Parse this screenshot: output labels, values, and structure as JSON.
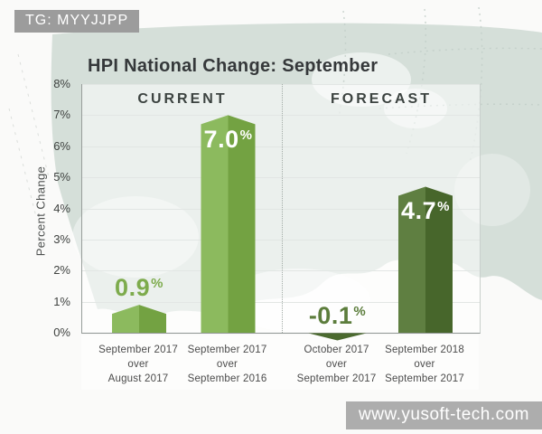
{
  "badge": {
    "text": "TG: MYYJJPP"
  },
  "watermark": {
    "text": "www.yusoft-tech.com"
  },
  "chart_data": {
    "type": "bar",
    "title": "HPI National Change: September",
    "ylabel": "Percent Change",
    "ylim": [
      0,
      8
    ],
    "grid": true,
    "yticks": [
      {
        "value": 8,
        "label": "8%"
      },
      {
        "value": 7,
        "label": "7%"
      },
      {
        "value": 6,
        "label": "6%"
      },
      {
        "value": 5,
        "label": "5%"
      },
      {
        "value": 4,
        "label": "4%"
      },
      {
        "value": 3,
        "label": "3%"
      },
      {
        "value": 2,
        "label": "2%"
      },
      {
        "value": 1,
        "label": "1%"
      },
      {
        "value": 0,
        "label": "0%"
      }
    ],
    "sections": [
      {
        "label": "CURRENT"
      },
      {
        "label": "FORECAST"
      }
    ],
    "bars": [
      {
        "section": "CURRENT",
        "value": 0.9,
        "display": "0.9",
        "suffix": "%",
        "label_position": "above",
        "category_lines": [
          "September 2017",
          "over",
          "August 2017"
        ],
        "color_left": "#8cba5e",
        "color_right": "#73a242",
        "label_color": "#7dab4c"
      },
      {
        "section": "CURRENT",
        "value": 7.0,
        "display": "7.0",
        "suffix": "%",
        "label_position": "inside",
        "category_lines": [
          "September 2017",
          "over",
          "September 2016"
        ],
        "color_left": "#8cba5e",
        "color_right": "#73a242",
        "label_color": "#ffffff"
      },
      {
        "section": "FORECAST",
        "value": -0.1,
        "display": "-0.1",
        "suffix": "%",
        "label_position": "above",
        "category_lines": [
          "October 2017",
          "over",
          "September 2017"
        ],
        "color_left": "#4b6a2f",
        "color_right": "#4b6a2f",
        "label_color": "#5c7d3c"
      },
      {
        "section": "FORECAST",
        "value": 4.7,
        "display": "4.7",
        "suffix": "%",
        "label_position": "inside",
        "category_lines": [
          "September 2018",
          "over",
          "September 2017"
        ],
        "color_left": "#5f7f41",
        "color_right": "#47662b",
        "label_color": "#ffffff"
      }
    ]
  },
  "colors": {
    "map_fill": "#d5dfd9",
    "badge_bg": "#9c9c9c",
    "watermark_bg": "#adadad",
    "title_text": "#35383a",
    "axis_text": "#3f4240",
    "grid_line": "#e2e6e4",
    "current_green_light": "#8cba5e",
    "current_green_dark": "#73a242",
    "forecast_green_light": "#5f7f41",
    "forecast_green_dark": "#47662b"
  }
}
